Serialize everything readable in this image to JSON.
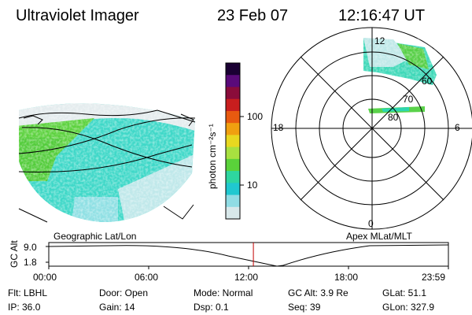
{
  "header": {
    "instrument": "Ultraviolet Imager",
    "date": "23 Feb 07",
    "time": "12:16:47 UT"
  },
  "colorbar": {
    "label": "photon cm⁻²s⁻¹",
    "ticks": [
      "100",
      "10"
    ],
    "colors": [
      "#1a0033",
      "#5a0a7a",
      "#8a0c3a",
      "#c81e1e",
      "#e85a10",
      "#f0a010",
      "#e8d820",
      "#a8e040",
      "#5ad23a",
      "#2ed6a0",
      "#20c8d0",
      "#90dce4",
      "#d8e8ea"
    ]
  },
  "left_panel": {
    "label": "Geographic Lat/Lon"
  },
  "right_panel": {
    "label": "Apex MLat/MLT",
    "mlt_labels": {
      "top": "12",
      "left": "18",
      "right": "6",
      "bottom": "0"
    },
    "lat_labels": [
      "60",
      "70",
      "80"
    ]
  },
  "timeline": {
    "ylabel": "GC Alt",
    "yticks": [
      "9.0",
      "1.8"
    ],
    "xticks": [
      "00:00",
      "06:00",
      "12:00",
      "18:00",
      "23:59"
    ],
    "current_time_fraction": 0.512
  },
  "footer": {
    "flt": "Flt: LBHL",
    "ip": "IP: 36.0",
    "door": "Door: Open",
    "gain": "Gain: 14",
    "mode": "Mode: Normal",
    "dsp": "Dsp:    0.1",
    "gcalt": "GC Alt: 3.9 Re",
    "seq": "Seq: 39",
    "glat": "GLat:  51.1",
    "glon": "GLon: 327.9"
  }
}
